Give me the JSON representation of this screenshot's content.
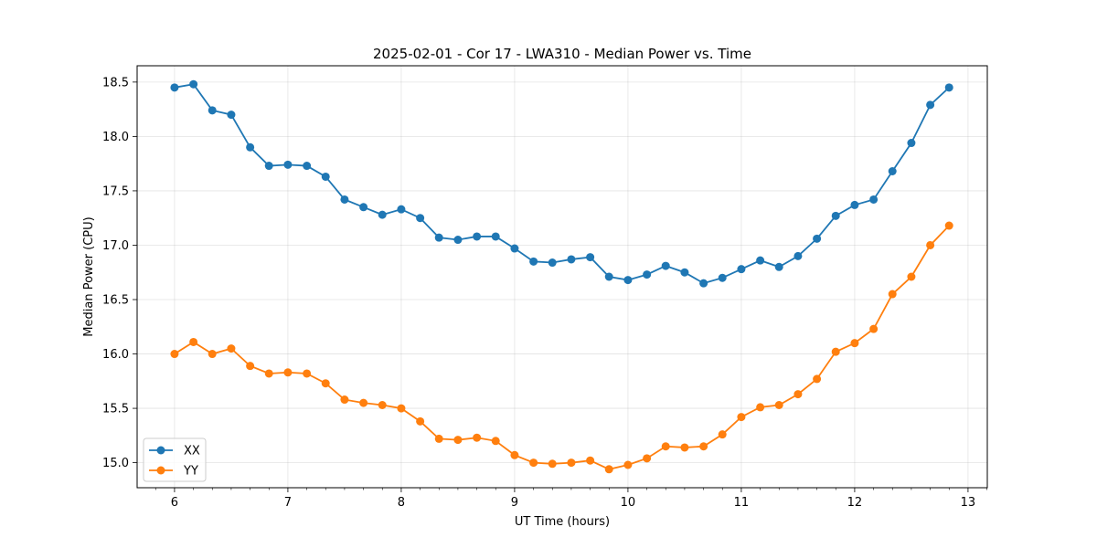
{
  "chart_data": {
    "type": "line",
    "title": "2025-02-01 - Cor 17 - LWA310 - Median Power vs. Time",
    "xlabel": "UT Time (hours)",
    "ylabel": "Median Power (CPU)",
    "xlim": [
      5.67,
      13.17
    ],
    "ylim": [
      14.77,
      18.65
    ],
    "xticks": [
      6,
      7,
      8,
      9,
      10,
      11,
      12,
      13
    ],
    "yticks": [
      15.0,
      15.5,
      16.0,
      16.5,
      17.0,
      17.5,
      18.0,
      18.5
    ],
    "xtick_labels": [
      "6",
      "7",
      "8",
      "9",
      "10",
      "11",
      "12",
      "13"
    ],
    "ytick_labels": [
      "15.0",
      "15.5",
      "16.0",
      "16.5",
      "17.0",
      "17.5",
      "18.0",
      "18.5"
    ],
    "grid": true,
    "legend_position": "lower-left",
    "x": [
      6.0,
      6.167,
      6.333,
      6.5,
      6.667,
      6.833,
      7.0,
      7.167,
      7.333,
      7.5,
      7.667,
      7.833,
      8.0,
      8.167,
      8.333,
      8.5,
      8.667,
      8.833,
      9.0,
      9.167,
      9.333,
      9.5,
      9.667,
      9.833,
      10.0,
      10.167,
      10.333,
      10.5,
      10.667,
      10.833,
      11.0,
      11.167,
      11.333,
      11.5,
      11.667,
      11.833,
      12.0,
      12.167,
      12.333,
      12.5,
      12.667,
      12.833
    ],
    "series": [
      {
        "name": "XX",
        "color": "#1f77b4",
        "values": [
          18.45,
          18.48,
          18.24,
          18.2,
          17.9,
          17.73,
          17.74,
          17.73,
          17.63,
          17.42,
          17.35,
          17.28,
          17.33,
          17.25,
          17.07,
          17.05,
          17.08,
          17.08,
          16.97,
          16.85,
          16.84,
          16.87,
          16.89,
          16.71,
          16.68,
          16.73,
          16.81,
          16.75,
          16.65,
          16.7,
          16.78,
          16.86,
          16.8,
          16.9,
          17.06,
          17.27,
          17.37,
          17.42,
          17.68,
          17.94,
          18.29,
          18.45
        ]
      },
      {
        "name": "YY",
        "color": "#ff7f0e",
        "values": [
          16.0,
          16.11,
          16.0,
          16.05,
          15.89,
          15.82,
          15.83,
          15.82,
          15.73,
          15.58,
          15.55,
          15.53,
          15.5,
          15.38,
          15.22,
          15.21,
          15.23,
          15.2,
          15.07,
          15.0,
          14.99,
          15.0,
          15.02,
          14.94,
          14.98,
          15.04,
          15.15,
          15.14,
          15.15,
          15.26,
          15.42,
          15.51,
          15.53,
          15.63,
          15.77,
          16.02,
          16.1,
          16.23,
          16.55,
          16.71,
          17.0,
          17.18
        ]
      }
    ]
  }
}
